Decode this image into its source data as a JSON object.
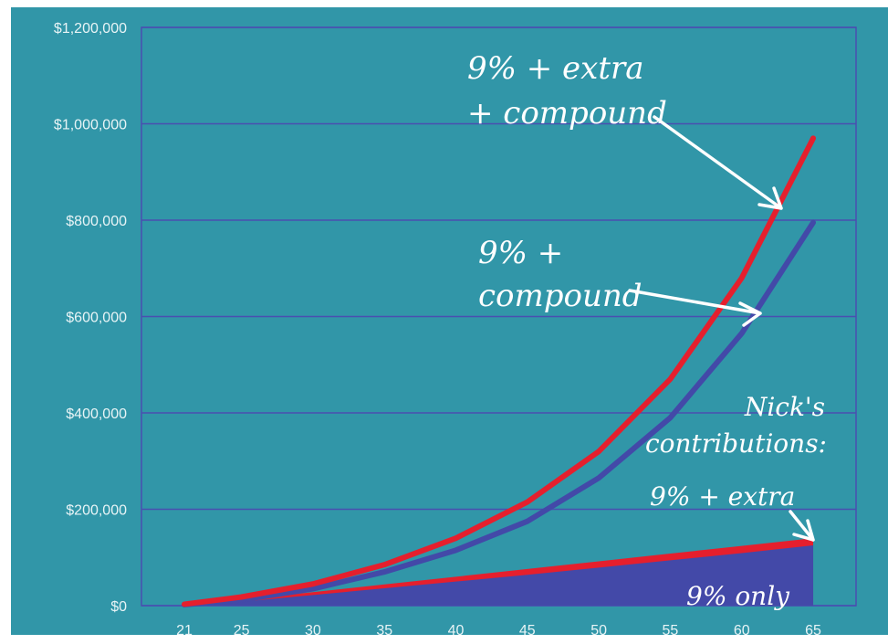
{
  "colors": {
    "background": "#3196a8",
    "plot_background": "#3196a8",
    "grid": "#4a4fb0",
    "red": "#e51f2d",
    "blue": "#4349a8",
    "annotation": "#ffffff"
  },
  "chart_data": {
    "type": "area",
    "title": "",
    "xlabel": "",
    "ylabel": "",
    "x": [
      21,
      25,
      30,
      35,
      40,
      45,
      50,
      55,
      60,
      65
    ],
    "x_ticks": [
      "21",
      "25",
      "30",
      "35",
      "40",
      "45",
      "50",
      "55",
      "60",
      "65"
    ],
    "y_ticks": [
      "$0",
      "$200,000",
      "$400,000",
      "$600,000",
      "$800,000",
      "$1,000,000",
      "$1,200,000"
    ],
    "xlim": [
      18,
      68
    ],
    "ylim": [
      0,
      1200000
    ],
    "grid": true,
    "series": [
      {
        "key": "extra_compound",
        "style": "line",
        "color": "#e51f2d",
        "values": [
          3000,
          18000,
          45000,
          85000,
          140000,
          215000,
          320000,
          470000,
          680000,
          970000
        ]
      },
      {
        "key": "compound",
        "style": "line",
        "color": "#4349a8",
        "values": [
          2000,
          12000,
          35000,
          70000,
          115000,
          175000,
          265000,
          390000,
          565000,
          795000
        ]
      },
      {
        "key": "extra_contrib",
        "style": "area",
        "color": "#e51f2d",
        "values": [
          0,
          12000,
          28000,
          44000,
          60000,
          76000,
          92000,
          108000,
          124000,
          140000
        ]
      },
      {
        "key": "base_contrib",
        "style": "area",
        "color": "#4349a8",
        "values": [
          0,
          8000,
          22000,
          36000,
          50000,
          64000,
          79000,
          94000,
          109000,
          125000
        ]
      }
    ],
    "annotations": {
      "extra_compound": [
        "9% + extra",
        "+ compound"
      ],
      "compound": [
        "9% +",
        "compound"
      ],
      "contributions": [
        "Nick's",
        "contributions:"
      ],
      "extra": "9% + extra",
      "only": "9% only"
    }
  }
}
